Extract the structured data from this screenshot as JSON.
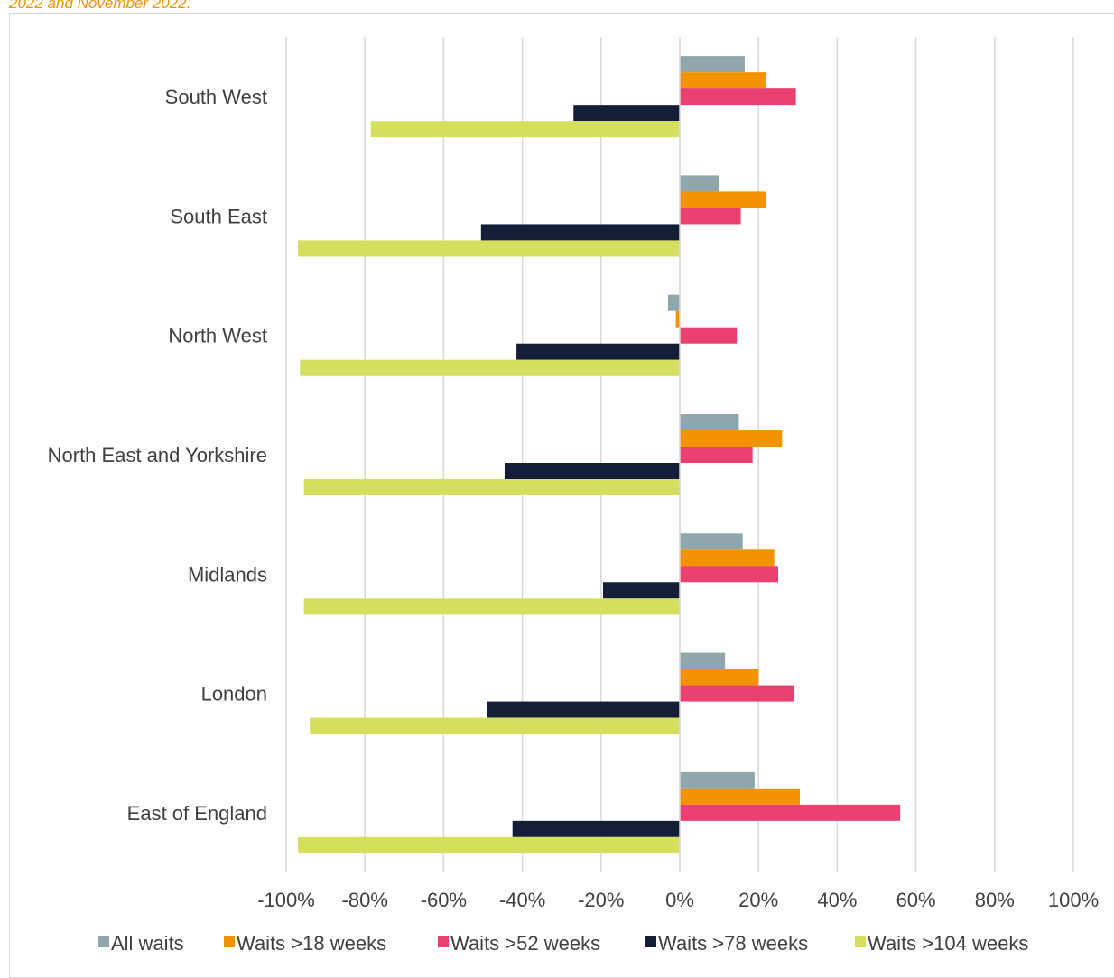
{
  "caption": "2022 and November 2022.",
  "chart_data": {
    "type": "bar",
    "orientation": "horizontal",
    "categories": [
      "South West",
      "South East",
      "North West",
      "North East and Yorkshire",
      "Midlands",
      "London",
      "East of England"
    ],
    "x_ticks": [
      "-100%",
      "-80%",
      "-60%",
      "-40%",
      "-20%",
      "0%",
      "20%",
      "40%",
      "60%",
      "80%",
      "100%"
    ],
    "xlim": [
      -1.0,
      1.0
    ],
    "grid": true,
    "legend_position": "bottom",
    "series": [
      {
        "name": "All waits",
        "color": "#8fa6aa",
        "values": [
          0.165,
          0.1,
          -0.03,
          0.15,
          0.16,
          0.115,
          0.19
        ]
      },
      {
        "name": "Waits >18 weeks",
        "color": "#f39200",
        "values": [
          0.22,
          0.22,
          -0.01,
          0.26,
          0.24,
          0.2,
          0.305
        ]
      },
      {
        "name": "Waits >52 weeks",
        "color": "#e8416f",
        "values": [
          0.295,
          0.155,
          0.145,
          0.185,
          0.25,
          0.29,
          0.56
        ]
      },
      {
        "name": "Waits >78 weeks",
        "color": "#141e36",
        "values": [
          -0.27,
          -0.505,
          -0.415,
          -0.445,
          -0.195,
          -0.49,
          -0.425
        ]
      },
      {
        "name": "Waits >104 weeks",
        "color": "#d4df5e",
        "values": [
          -0.785,
          -0.97,
          -0.965,
          -0.955,
          -0.955,
          -0.94,
          -0.97
        ]
      }
    ]
  }
}
